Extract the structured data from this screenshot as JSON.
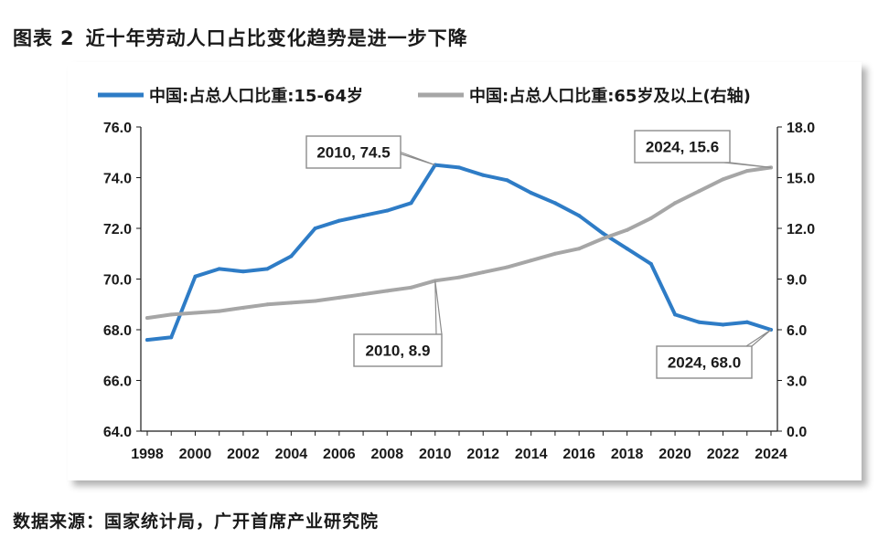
{
  "figure": {
    "label": "图表",
    "number": "2",
    "title": "近十年劳动人口占比变化趋势是进一步下降",
    "source": "数据来源：国家统计局，广开首席产业研究院"
  },
  "colors": {
    "series_blue": "#2e7cc6",
    "series_gray": "#a6a6a6",
    "axis": "#1a1a1a",
    "callout_border": "#8c8c8c"
  },
  "chart_data": {
    "type": "line",
    "x": [
      1998,
      1999,
      2000,
      2001,
      2002,
      2003,
      2004,
      2005,
      2006,
      2007,
      2008,
      2009,
      2010,
      2011,
      2012,
      2013,
      2014,
      2015,
      2016,
      2017,
      2018,
      2019,
      2020,
      2021,
      2022,
      2023,
      2024
    ],
    "x_ticks": [
      "1998",
      "2000",
      "2002",
      "2004",
      "2006",
      "2008",
      "2010",
      "2012",
      "2014",
      "2016",
      "2018",
      "2020",
      "2022",
      "2024"
    ],
    "series": [
      {
        "name": "中国:占总人口比重:15-64岁",
        "axis": "left",
        "color": "#2e7cc6",
        "values": [
          67.6,
          67.7,
          70.1,
          70.4,
          70.3,
          70.4,
          70.9,
          72.0,
          72.3,
          72.5,
          72.7,
          73.0,
          74.5,
          74.4,
          74.1,
          73.9,
          73.4,
          73.0,
          72.5,
          71.8,
          71.2,
          70.6,
          68.6,
          68.3,
          68.2,
          68.3,
          68.0
        ]
      },
      {
        "name": "中国:占总人口比重:65岁及以上(右轴)",
        "axis": "right",
        "color": "#a6a6a6",
        "values": [
          6.7,
          6.9,
          7.0,
          7.1,
          7.3,
          7.5,
          7.6,
          7.7,
          7.9,
          8.1,
          8.3,
          8.5,
          8.9,
          9.1,
          9.4,
          9.7,
          10.1,
          10.5,
          10.8,
          11.4,
          11.9,
          12.6,
          13.5,
          14.2,
          14.9,
          15.4,
          15.6
        ]
      }
    ],
    "y_left": {
      "min": 64,
      "max": 76,
      "step": 2,
      "ticks": [
        "64.0",
        "66.0",
        "68.0",
        "70.0",
        "72.0",
        "74.0",
        "76.0"
      ]
    },
    "y_right": {
      "min": 0,
      "max": 18,
      "step": 3,
      "ticks": [
        "0.0",
        "3.0",
        "6.0",
        "9.0",
        "12.0",
        "15.0",
        "18.0"
      ]
    },
    "legend_position": "top",
    "grid": false,
    "annotations": [
      {
        "text": "2010, 74.5",
        "x": 2010,
        "value": 74.5,
        "axis": "left"
      },
      {
        "text": "2024, 15.6",
        "x": 2024,
        "value": 15.6,
        "axis": "right"
      },
      {
        "text": "2010, 8.9",
        "x": 2010,
        "value": 8.9,
        "axis": "right"
      },
      {
        "text": "2024, 68.0",
        "x": 2024,
        "value": 68.0,
        "axis": "left"
      }
    ]
  }
}
